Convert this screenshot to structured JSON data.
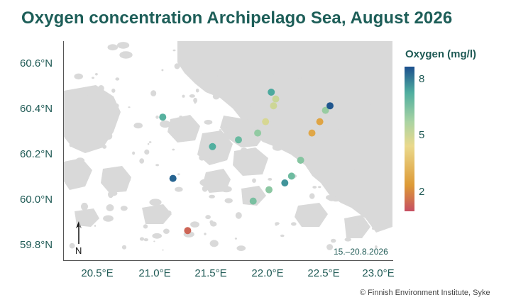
{
  "title": "Oxygen concentration Archipelago Sea, August 2026",
  "map": {
    "lat_labels": [
      "60.6°N",
      "60.4°N",
      "60.2°N",
      "60.0°N",
      "59.8°N"
    ],
    "lon_labels": [
      "20.5°E",
      "21.0°E",
      "21.5°E",
      "22.0°E",
      "22.5°E",
      "23.0°E"
    ],
    "north_label": "N",
    "period": "15.–20.8.2026",
    "land_color": "#d9d9d9",
    "sea_color": "#ffffff"
  },
  "legend": {
    "title": "Oxygen (mg/l)",
    "ticks": [
      "8",
      "5",
      "2"
    ],
    "min": 1,
    "max": 8.6,
    "colors": [
      "#c64f63",
      "#dd9a36",
      "#ead98c",
      "#a9d3a3",
      "#4fae9f",
      "#1c4f8d"
    ]
  },
  "credit": "© Finnish Environment Institute, Syke",
  "stations": [
    {
      "lon": 21.08,
      "lat": 60.34,
      "oxygen": 7.1
    },
    {
      "lon": 21.17,
      "lat": 60.07,
      "oxygen": 8.3
    },
    {
      "lon": 21.3,
      "lat": 59.84,
      "oxygen": 1.4
    },
    {
      "lon": 21.52,
      "lat": 60.21,
      "oxygen": 7.2
    },
    {
      "lon": 21.75,
      "lat": 60.24,
      "oxygen": 6.8
    },
    {
      "lon": 21.88,
      "lat": 59.97,
      "oxygen": 6.5
    },
    {
      "lon": 21.92,
      "lat": 60.27,
      "oxygen": 6.1
    },
    {
      "lon": 21.99,
      "lat": 60.32,
      "oxygen": 4.8
    },
    {
      "lon": 22.02,
      "lat": 60.02,
      "oxygen": 6.2
    },
    {
      "lon": 22.04,
      "lat": 60.45,
      "oxygen": 7.3
    },
    {
      "lon": 22.06,
      "lat": 60.39,
      "oxygen": 5.0
    },
    {
      "lon": 22.08,
      "lat": 60.42,
      "oxygen": 5.1
    },
    {
      "lon": 22.16,
      "lat": 60.05,
      "oxygen": 7.6
    },
    {
      "lon": 22.22,
      "lat": 60.08,
      "oxygen": 6.7
    },
    {
      "lon": 22.3,
      "lat": 60.15,
      "oxygen": 6.3
    },
    {
      "lon": 22.4,
      "lat": 60.27,
      "oxygen": 2.8
    },
    {
      "lon": 22.47,
      "lat": 60.32,
      "oxygen": 2.7
    },
    {
      "lon": 22.52,
      "lat": 60.37,
      "oxygen": 6.0
    },
    {
      "lon": 22.56,
      "lat": 60.39,
      "oxygen": 8.5
    }
  ]
}
